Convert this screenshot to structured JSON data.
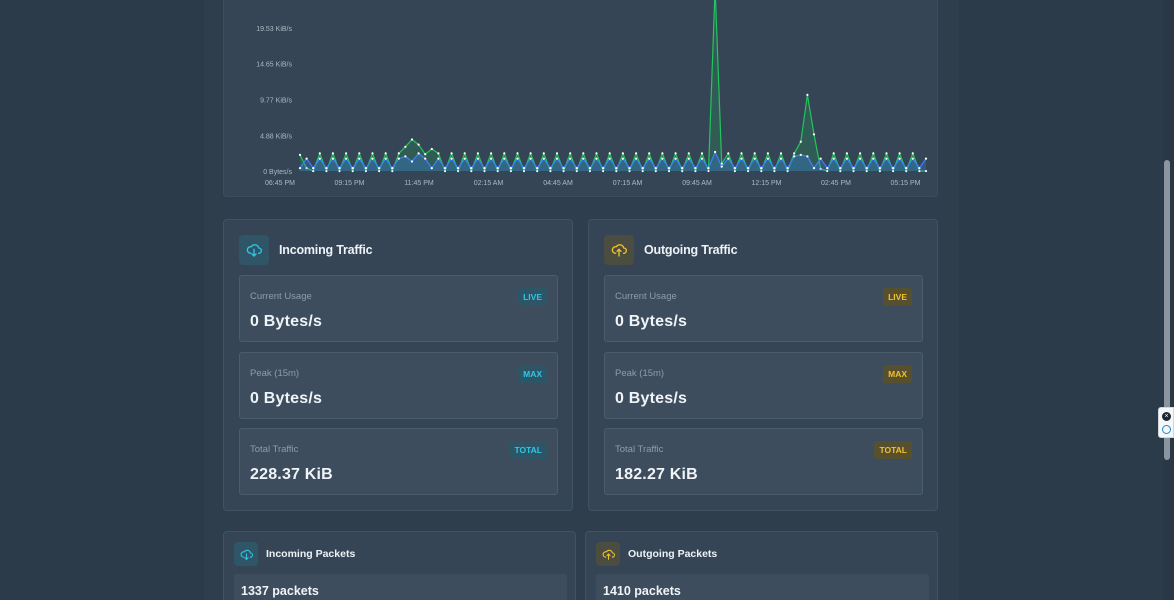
{
  "chart_data": {
    "type": "line",
    "y_ticks": [
      "0 Bytes/s",
      "4.88 KiB/s",
      "9.77 KiB/s",
      "14.65 KiB/s",
      "19.53 KiB/s"
    ],
    "y_tick_values": [
      0,
      4.88,
      9.77,
      14.65,
      19.53
    ],
    "x_ticks": [
      "06:45 PM",
      "09:15 PM",
      "11:45 PM",
      "02:15 AM",
      "04:45 AM",
      "07:15 AM",
      "09:45 AM",
      "12:15 PM",
      "02:45 PM",
      "05:15 PM"
    ],
    "ylim": [
      0,
      24
    ],
    "series": [
      {
        "color": "#22c55e",
        "values": [
          0.4,
          0,
          3,
          0,
          3,
          0,
          3,
          0,
          3,
          0,
          3,
          0,
          3,
          0,
          3,
          0,
          3,
          0,
          3,
          0,
          3,
          0,
          3,
          2.5,
          3.8,
          4.4,
          4.0,
          2.5,
          3.2,
          0,
          3,
          0,
          3,
          0,
          3,
          0,
          3,
          0,
          3,
          0,
          3,
          0,
          3,
          0,
          3,
          0,
          3,
          0,
          3,
          0,
          3,
          0,
          3,
          0,
          3,
          0,
          3,
          0,
          3,
          0,
          3,
          0,
          3,
          0,
          3,
          0,
          3,
          0,
          3,
          0,
          3,
          0,
          3,
          0,
          3,
          0,
          3,
          0,
          3,
          0,
          3,
          0,
          3,
          0,
          3,
          0,
          3,
          0,
          3,
          0,
          3,
          0,
          3,
          0,
          3,
          0,
          3,
          0,
          3,
          0,
          3,
          0,
          3,
          0,
          3,
          0,
          3,
          0,
          3,
          0,
          3,
          0,
          3,
          0,
          3,
          0,
          3,
          0,
          3,
          0,
          3,
          0,
          3,
          0,
          3,
          0,
          3,
          0,
          3,
          0,
          3,
          0,
          3,
          0,
          3,
          0,
          3,
          0,
          3,
          0,
          3,
          0,
          3,
          0,
          3,
          0,
          3,
          0,
          3,
          0,
          3,
          0,
          3,
          0,
          3,
          0,
          3,
          0,
          3,
          0,
          3,
          0,
          3,
          0,
          3,
          0,
          3,
          0,
          3,
          0,
          3,
          0,
          3,
          0,
          3,
          0,
          3,
          0,
          3,
          0,
          3,
          0,
          3,
          0,
          3,
          0,
          3,
          0,
          3,
          0,
          3,
          0,
          3,
          0,
          3,
          0,
          3,
          0,
          3,
          0,
          3,
          0,
          3,
          0,
          3,
          0,
          3,
          0,
          3,
          0,
          3,
          0,
          3,
          0,
          3,
          0,
          3,
          0,
          3,
          0,
          3,
          0,
          3,
          0,
          3,
          0,
          3,
          0,
          3,
          0,
          3,
          0,
          3,
          0,
          3,
          0,
          3,
          0,
          3,
          0,
          3,
          0,
          3,
          0,
          3,
          0,
          3,
          0,
          3,
          0
        ]
      },
      {
        "color": "#3b82f6",
        "values": [
          1.8,
          0.5,
          1.8,
          0.5,
          1.8,
          0.5,
          1.8,
          0.5,
          1.8,
          0.5,
          1.8,
          0.5,
          1.8,
          0.5,
          1.8,
          0.5,
          1.8,
          0.5,
          1.8,
          0.5,
          1.8,
          0.5,
          1.8,
          0.5,
          2.8,
          1.5,
          2.2,
          0.5,
          1.8,
          0.5,
          1.8,
          0.5,
          1.8,
          0.5,
          1.8,
          0.5,
          1.8,
          0.5,
          1.8,
          0.5,
          1.8,
          0.5,
          1.8,
          0.5,
          1.8,
          0.5,
          1.8,
          0.5,
          1.8,
          0.5,
          1.8,
          0.5,
          1.8,
          0.5,
          1.8,
          0.5,
          1.8,
          0.5,
          1.8,
          0.5,
          1.8,
          0.5,
          1.8,
          0.5,
          1.8,
          0.5,
          1.8,
          0.5,
          1.8,
          0.5,
          1.8,
          0.5,
          1.8,
          0.5,
          1.8,
          0.5,
          1.8,
          0.5,
          1.8,
          0.5,
          1.8,
          0.5,
          1.8,
          0.5,
          1.8,
          0.5,
          1.8,
          0.5,
          1.8,
          0.5,
          1.8,
          0.5
        ]
      }
    ]
  },
  "incoming": {
    "title": "Incoming Traffic",
    "current_label": "Current Usage",
    "current_value": "0 Bytes/s",
    "current_badge": "LIVE",
    "peak_label": "Peak (15m)",
    "peak_value": "0 Bytes/s",
    "peak_badge": "MAX",
    "total_label": "Total Traffic",
    "total_value": "228.37 KiB",
    "total_badge": "TOTAL"
  },
  "outgoing": {
    "title": "Outgoing Traffic",
    "current_label": "Current Usage",
    "current_value": "0 Bytes/s",
    "current_badge": "LIVE",
    "peak_label": "Peak (15m)",
    "peak_value": "0 Bytes/s",
    "peak_badge": "MAX",
    "total_label": "Total Traffic",
    "total_value": "182.27 KiB",
    "total_badge": "TOTAL"
  },
  "packets": {
    "incoming_title": "Incoming Packets",
    "incoming_value": "1337 packets",
    "outgoing_title": "Outgoing Packets",
    "outgoing_value": "1410 packets"
  },
  "colors": {
    "incoming_accent": "#2fc7e8",
    "outgoing_accent": "#f2c12e"
  },
  "icons": {
    "incoming": "cloud-download-icon",
    "outgoing": "cloud-upload-icon"
  }
}
